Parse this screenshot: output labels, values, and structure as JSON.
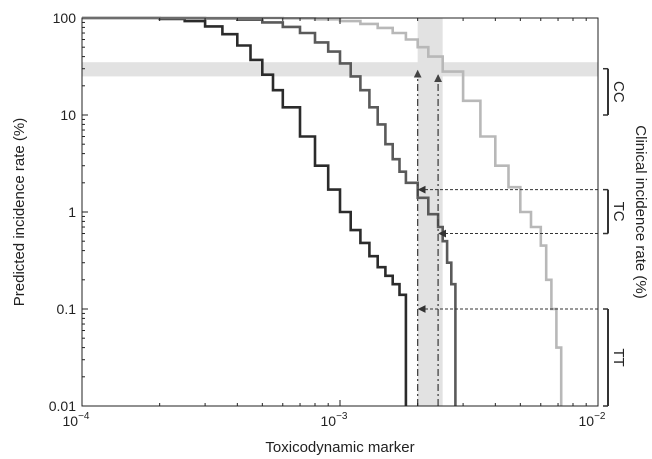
{
  "chart_data": {
    "type": "line",
    "xlabel": "Toxicodynamic marker",
    "ylabel": "Predicted incidence rate (%)",
    "y2label": "Clinical incidence rate (%)",
    "xscale": "log",
    "yscale": "log",
    "xlim": [
      0.0001,
      0.01
    ],
    "ylim": [
      0.01,
      100
    ],
    "x_ticks": [
      {
        "value": 0.0001,
        "base": "10",
        "exp": "−4"
      },
      {
        "value": 0.001,
        "base": "10",
        "exp": "−3"
      },
      {
        "value": 0.01,
        "base": "10",
        "exp": "−2"
      }
    ],
    "y_ticks": [
      {
        "value": 100,
        "label": "100"
      },
      {
        "value": 10,
        "label": "10"
      },
      {
        "value": 1,
        "label": "1"
      },
      {
        "value": 0.1,
        "label": "0.1"
      },
      {
        "value": 0.01,
        "label": "0.01"
      }
    ],
    "series": [
      {
        "color": "#2b2b2b",
        "points": [
          [
            0.0001,
            100
          ],
          [
            0.00015,
            100
          ],
          [
            0.0002,
            98
          ],
          [
            0.00025,
            93
          ],
          [
            0.0003,
            82
          ],
          [
            0.00035,
            68
          ],
          [
            0.0004,
            52
          ],
          [
            0.00045,
            37
          ],
          [
            0.0005,
            26
          ],
          [
            0.00055,
            18
          ],
          [
            0.0006,
            12
          ],
          [
            0.0007,
            6
          ],
          [
            0.0008,
            3
          ],
          [
            0.0009,
            1.7
          ],
          [
            0.001,
            1
          ],
          [
            0.0011,
            0.65
          ],
          [
            0.0012,
            0.48
          ],
          [
            0.0013,
            0.35
          ],
          [
            0.0014,
            0.27
          ],
          [
            0.0015,
            0.22
          ],
          [
            0.0016,
            0.18
          ],
          [
            0.0017,
            0.14
          ],
          [
            0.0018,
            0.1
          ],
          [
            0.0018,
            0.01
          ]
        ]
      },
      {
        "color": "#5a5a5a",
        "points": [
          [
            0.0001,
            100
          ],
          [
            0.00025,
            100
          ],
          [
            0.0003,
            99
          ],
          [
            0.0004,
            96
          ],
          [
            0.0005,
            90
          ],
          [
            0.0006,
            81
          ],
          [
            0.0007,
            70
          ],
          [
            0.0008,
            56
          ],
          [
            0.0009,
            45
          ],
          [
            0.001,
            34
          ],
          [
            0.0011,
            25
          ],
          [
            0.0012,
            18
          ],
          [
            0.0013,
            12
          ],
          [
            0.0014,
            8
          ],
          [
            0.0015,
            5
          ],
          [
            0.0016,
            3.5
          ],
          [
            0.0017,
            2.6
          ],
          [
            0.0018,
            2
          ],
          [
            0.002,
            1.4
          ],
          [
            0.0022,
            0.95
          ],
          [
            0.0024,
            0.7
          ],
          [
            0.0025,
            0.5
          ],
          [
            0.0026,
            0.3
          ],
          [
            0.0027,
            0.18
          ],
          [
            0.0028,
            0.11
          ],
          [
            0.0028,
            0.01
          ]
        ]
      },
      {
        "color": "#b8b8b8",
        "points": [
          [
            0.0001,
            100
          ],
          [
            0.0003,
            100
          ],
          [
            0.0006,
            99
          ],
          [
            0.0008,
            97
          ],
          [
            0.001,
            93
          ],
          [
            0.0012,
            87
          ],
          [
            0.0014,
            79
          ],
          [
            0.0016,
            70
          ],
          [
            0.0018,
            60
          ],
          [
            0.002,
            50
          ],
          [
            0.0022,
            40
          ],
          [
            0.0025,
            28
          ],
          [
            0.003,
            14
          ],
          [
            0.0035,
            6
          ],
          [
            0.004,
            3
          ],
          [
            0.0045,
            1.8
          ],
          [
            0.005,
            1
          ],
          [
            0.0055,
            0.7
          ],
          [
            0.006,
            0.45
          ],
          [
            0.0063,
            0.2
          ],
          [
            0.0066,
            0.1
          ],
          [
            0.0069,
            0.04
          ],
          [
            0.0072,
            0.01
          ]
        ]
      }
    ],
    "highlight_bands": [
      {
        "axis": "y",
        "range": [
          25,
          35
        ]
      },
      {
        "axis": "x",
        "range": [
          0.002,
          0.0025
        ]
      }
    ],
    "vertical_markers": [
      {
        "x": 0.002,
        "y_top": 30
      },
      {
        "x": 0.0024,
        "y_top": 27
      }
    ],
    "clinical_ranges": [
      {
        "label": "CC",
        "low": 10,
        "high": 30
      },
      {
        "label": "TC",
        "low": 0.6,
        "high": 1.7
      },
      {
        "label": "TT",
        "low": 0.01,
        "high": 0.1
      }
    ],
    "arrows": [
      {
        "y": 1.7,
        "x_end": 0.002
      },
      {
        "y": 0.6,
        "x_end": 0.0024
      },
      {
        "y": 0.1,
        "x_end": 0.002
      }
    ]
  }
}
